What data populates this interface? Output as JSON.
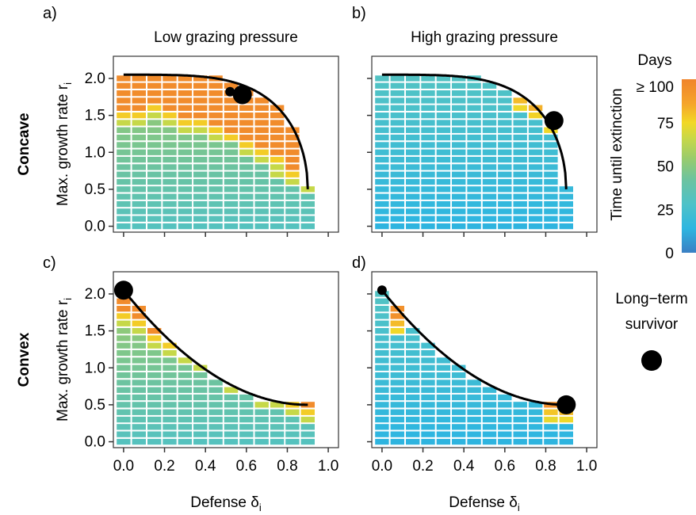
{
  "panel_letters": {
    "a": "a)",
    "b": "b)",
    "c": "c)",
    "d": "d)"
  },
  "column_titles": {
    "low": "Low grazing pressure",
    "high": "High grazing pressure"
  },
  "row_labels": {
    "concave": "Concave",
    "convex": "Convex"
  },
  "legend": {
    "colorbar_title": "Days",
    "colorbar_label": "Time until extinction",
    "ticks": [
      {
        "value": 100,
        "label": "≥ 100"
      },
      {
        "value": 75,
        "label": "75"
      },
      {
        "value": 50,
        "label": "50"
      },
      {
        "value": 25,
        "label": "25"
      },
      {
        "value": 0,
        "label": "0"
      }
    ],
    "survivor_label_line1": "Long−term",
    "survivor_label_line2": "survivor",
    "colorscale": [
      "#3a7fc4",
      "#2eb6e0",
      "#4ec2c8",
      "#6cc3a0",
      "#9ccc6a",
      "#c8d848",
      "#f2d826",
      "#f5a42c",
      "#f0842c"
    ]
  },
  "chart_data": [
    {
      "panel": "a",
      "type": "heatmap",
      "tradeoff": "concave",
      "grazing": "low",
      "ylabel": "Max. growth rate r_i",
      "xlabel": "",
      "xlim": [
        -0.05,
        1.05
      ],
      "ylim": [
        -0.08,
        2.3
      ],
      "xticks": [],
      "yticks": [
        0.0,
        0.5,
        1.0,
        1.5,
        2.0
      ],
      "tradeoff_curve": {
        "shape": "concave",
        "r_max": 2.05,
        "r_min": 0.5,
        "delta_max": 0.9
      },
      "transition_r": [
        1.58,
        1.6,
        1.62,
        1.6,
        1.5,
        1.45,
        1.4,
        1.3,
        1.15,
        1.0,
        0.9,
        0.75,
        0.65
      ],
      "survivors": [
        {
          "delta": 0.58,
          "r": 1.78,
          "size": "large"
        },
        {
          "delta": 0.52,
          "r": 1.82,
          "size": "small"
        }
      ]
    },
    {
      "panel": "b",
      "type": "heatmap",
      "tradeoff": "concave",
      "grazing": "high",
      "ylabel": "",
      "xlabel": "",
      "xlim": [
        -0.05,
        1.05
      ],
      "ylim": [
        -0.08,
        2.3
      ],
      "xticks": [],
      "yticks": [],
      "tradeoff_curve": {
        "shape": "concave",
        "r_max": 2.05,
        "r_min": 0.5,
        "delta_max": 0.9
      },
      "transition_r": [
        9,
        9,
        9,
        9,
        9,
        9,
        9,
        9,
        9,
        1.85,
        1.72,
        1.55,
        1.3
      ],
      "survivors": [
        {
          "delta": 0.84,
          "r": 1.43,
          "size": "large"
        }
      ]
    },
    {
      "panel": "c",
      "type": "heatmap",
      "tradeoff": "convex",
      "grazing": "low",
      "ylabel": "Max. growth rate r_i",
      "xlabel": "Defense δ_i",
      "xlim": [
        -0.05,
        1.05
      ],
      "ylim": [
        -0.08,
        2.3
      ],
      "xticks": [
        0.0,
        0.2,
        0.4,
        0.6,
        0.8,
        1.0
      ],
      "yticks": [
        0.0,
        0.5,
        1.0,
        1.5,
        2.0
      ],
      "tradeoff_curve": {
        "shape": "convex",
        "r_max": 2.05,
        "r_min": 0.5,
        "delta_max": 0.9
      },
      "transition_r": [
        1.8,
        1.65,
        1.5,
        1.35,
        1.22,
        1.1,
        1.0,
        0.9,
        0.8,
        0.7,
        0.62,
        0.55,
        0.5
      ],
      "survivors": [
        {
          "delta": 0.0,
          "r": 2.05,
          "size": "large"
        }
      ]
    },
    {
      "panel": "d",
      "type": "heatmap",
      "tradeoff": "convex",
      "grazing": "high",
      "ylabel": "",
      "xlabel": "Defense δ_i",
      "xlim": [
        -0.05,
        1.05
      ],
      "ylim": [
        -0.08,
        2.3
      ],
      "xticks": [
        0.0,
        0.2,
        0.4,
        0.6,
        0.8,
        1.0
      ],
      "yticks": [],
      "tradeoff_curve": {
        "shape": "convex",
        "r_max": 2.05,
        "r_min": 0.5,
        "delta_max": 0.9
      },
      "transition_r": [
        9,
        1.75,
        9,
        9,
        9,
        9,
        9,
        9,
        9,
        9,
        9,
        0.58,
        0.55
      ],
      "survivors": [
        {
          "delta": 0.0,
          "r": 2.05,
          "size": "small"
        },
        {
          "delta": 0.9,
          "r": 0.5,
          "size": "large"
        }
      ]
    }
  ]
}
